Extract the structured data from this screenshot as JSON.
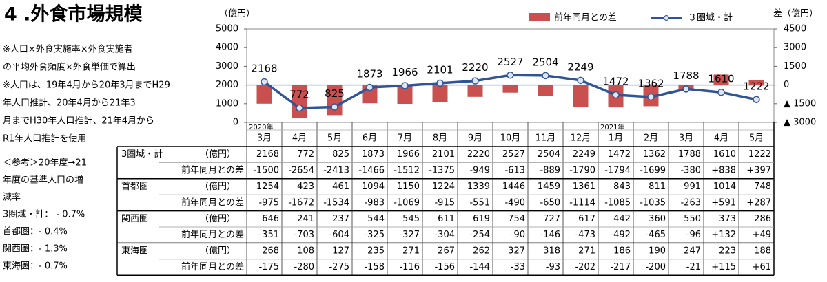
{
  "chart_data": {
    "type": "combo",
    "title": "4 .外食市場規模",
    "y_label": "（億円）",
    "y2_label": "差（億円）",
    "category_groups": [
      {
        "label": "2020年",
        "categories": [
          "3月",
          "4月",
          "5月",
          "6月",
          "7月",
          "8月",
          "9月",
          "10月",
          "11月",
          "12月"
        ]
      },
      {
        "label": "2021年",
        "categories": [
          "1月",
          "2月",
          "3月",
          "4月",
          "5月"
        ]
      }
    ],
    "series": [
      {
        "name": "前年同月との差",
        "type": "bar",
        "axis": "y2",
        "color": "#c9504f",
        "values": [
          -1500,
          -2654,
          -2413,
          -1466,
          -1512,
          -1375,
          -949,
          -613,
          -889,
          -1790,
          -1794,
          -1699,
          -380,
          838,
          397
        ],
        "value_labels": [
          "-1500",
          "-2654",
          "-2413",
          "-1466",
          "-1512",
          "-1375",
          "-949",
          "-613",
          "-889",
          "-1790",
          "-1794",
          "-1699",
          "-380",
          "+838",
          "+397"
        ]
      },
      {
        "name": "３圏域・計",
        "type": "line",
        "color": "#2f5597",
        "values": [
          2168,
          772,
          825,
          1873,
          1966,
          2101,
          2220,
          2527,
          2504,
          2249,
          1472,
          1362,
          1788,
          1610,
          1222
        ]
      }
    ],
    "ylim": [
      0,
      5000
    ],
    "yticks": [
      0,
      1000,
      2000,
      3000,
      4000,
      5000
    ],
    "y2lim": [
      -3000,
      4500
    ],
    "y2ticks": [
      {
        "value": -3000,
        "label": "▲ 3000"
      },
      {
        "value": -1500,
        "label": "▲ 1500"
      },
      0,
      1500,
      3000,
      4500
    ],
    "legend": "top-right",
    "grid": false
  },
  "notes": [
    "※人口×外食実施率×外食実施者",
    "の平均外食頻度×外食単価で算出",
    "※人口は、19年4月から20年3月までH29",
    "年人口推計、20年4月から21年3",
    "月までH30年人口推計、21年4月から",
    "R1年人口推計を使用",
    "＜参考＞20年度→21",
    "年度の基準人口の増",
    "減率",
    "3圏域・計： - 0.7%",
    "首都圏：- 0.4%",
    "関西圏：- 1.3%",
    "東海圏：- 0.7%"
  ],
  "table": {
    "rows": [
      {
        "label": "3圏域・計",
        "unit": "（億円）",
        "diff_label": "前年同月との差"
      },
      {
        "label": "首都圏",
        "unit": "（億円）",
        "diff_label": "前年同月との差",
        "values": [
          "1254",
          "423",
          "461",
          "1094",
          "1150",
          "1224",
          "1339",
          "1446",
          "1459",
          "1361",
          "843",
          "811",
          "991",
          "1014",
          "748"
        ],
        "diffs": [
          "-975",
          "-1672",
          "-1534",
          "-983",
          "-1069",
          "-915",
          "-551",
          "-490",
          "-650",
          "-1114",
          "-1085",
          "-1035",
          "-263",
          "+591",
          "+287"
        ]
      },
      {
        "label": "関西圏",
        "unit": "（億円）",
        "diff_label": "前年同月との差",
        "values": [
          "646",
          "241",
          "237",
          "544",
          "545",
          "611",
          "619",
          "754",
          "727",
          "617",
          "442",
          "360",
          "550",
          "373",
          "286"
        ],
        "diffs": [
          "-351",
          "-703",
          "-604",
          "-325",
          "-327",
          "-304",
          "-254",
          "-90",
          "-146",
          "-473",
          "-492",
          "-465",
          "-96",
          "+132",
          "+49"
        ]
      },
      {
        "label": "東海圏",
        "unit": "（億円）",
        "diff_label": "前年同月との差",
        "values": [
          "268",
          "108",
          "127",
          "235",
          "271",
          "267",
          "262",
          "327",
          "318",
          "271",
          "186",
          "190",
          "247",
          "223",
          "188"
        ],
        "diffs": [
          "-175",
          "-280",
          "-275",
          "-158",
          "-116",
          "-156",
          "-144",
          "-33",
          "-93",
          "-202",
          "-217",
          "-200",
          "-21",
          "+115",
          "+61"
        ]
      }
    ]
  }
}
